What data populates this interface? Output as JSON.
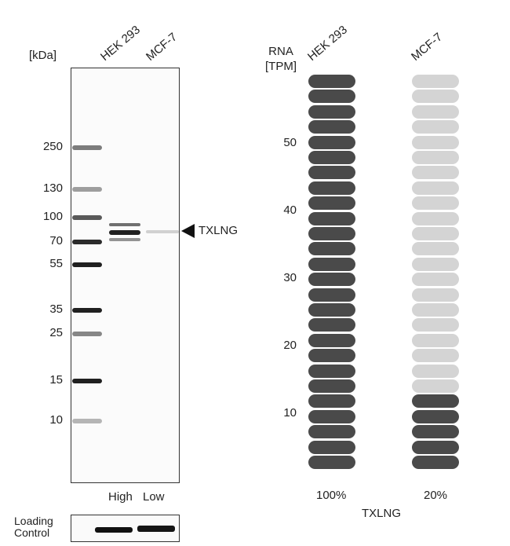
{
  "western_blot": {
    "unit_label": "[kDa]",
    "lanes": [
      "HEK 293",
      "MCF-7"
    ],
    "markers": [
      "250",
      "130",
      "100",
      "70",
      "55",
      "35",
      "25",
      "15",
      "10"
    ],
    "target_label": "TXLNG",
    "expression_labels": [
      "High",
      "Low"
    ],
    "loading_control_label": [
      "Loading",
      "Control"
    ]
  },
  "chart_data": {
    "type": "pictogram-bar",
    "ylabel": [
      "RNA",
      "[TPM]"
    ],
    "yticks": [
      10,
      20,
      30,
      40,
      50
    ],
    "categories": [
      "HEK 293",
      "MCF-7"
    ],
    "percent_labels": [
      "100%",
      "20%"
    ],
    "filled_units": [
      26,
      5
    ],
    "total_units": 26,
    "xlabel": "TXLNG",
    "colors": {
      "filled": "#4a4a4a",
      "empty": "#d4d4d4"
    }
  }
}
